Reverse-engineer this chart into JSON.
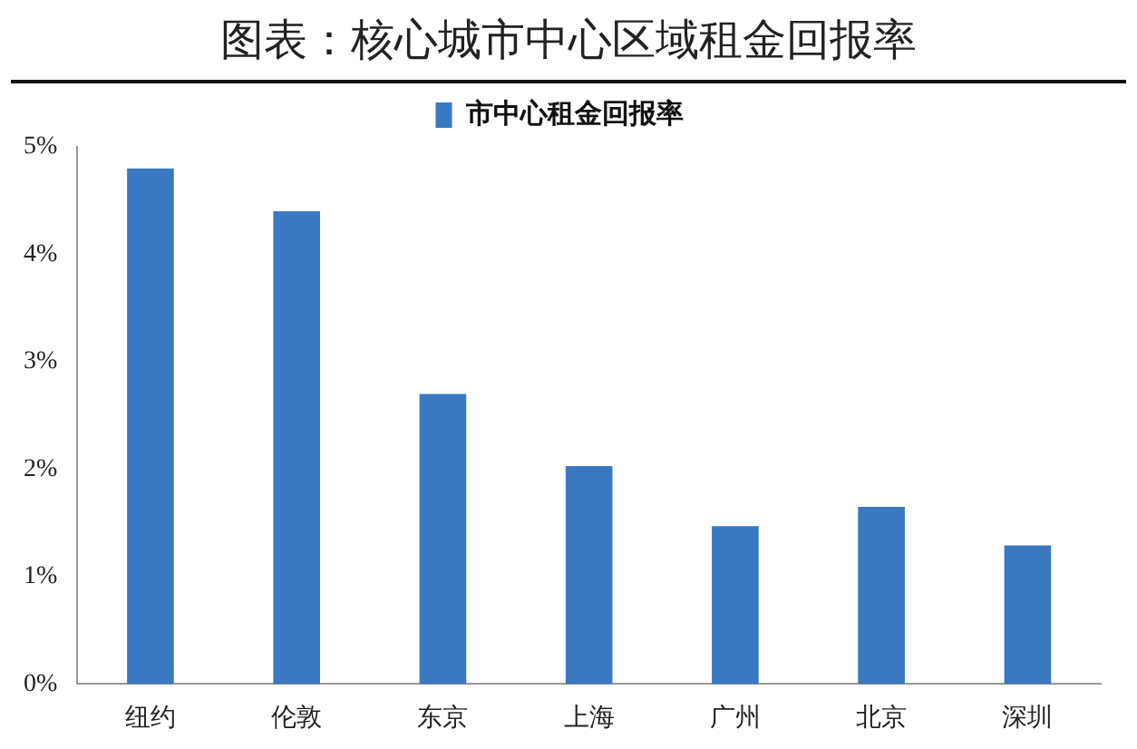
{
  "chart_data": {
    "type": "bar",
    "title": "图表：核心城市中心区域租金回报率",
    "categories": [
      "纽约",
      "伦敦",
      "东京",
      "上海",
      "广州",
      "北京",
      "深圳"
    ],
    "series": [
      {
        "name": "市中心租金回报率",
        "color": "#3a78c2",
        "values": [
          4.8,
          4.4,
          2.7,
          2.03,
          1.47,
          1.65,
          1.29
        ]
      }
    ],
    "ylim": [
      0,
      5
    ],
    "yticks": [
      {
        "value": 0,
        "label": "0%"
      },
      {
        "value": 1,
        "label": "1%"
      },
      {
        "value": 2,
        "label": "2%"
      },
      {
        "value": 3,
        "label": "3%"
      },
      {
        "value": 4,
        "label": "4%"
      },
      {
        "value": 5,
        "label": "5%"
      }
    ],
    "grid": false,
    "legend": "top"
  }
}
